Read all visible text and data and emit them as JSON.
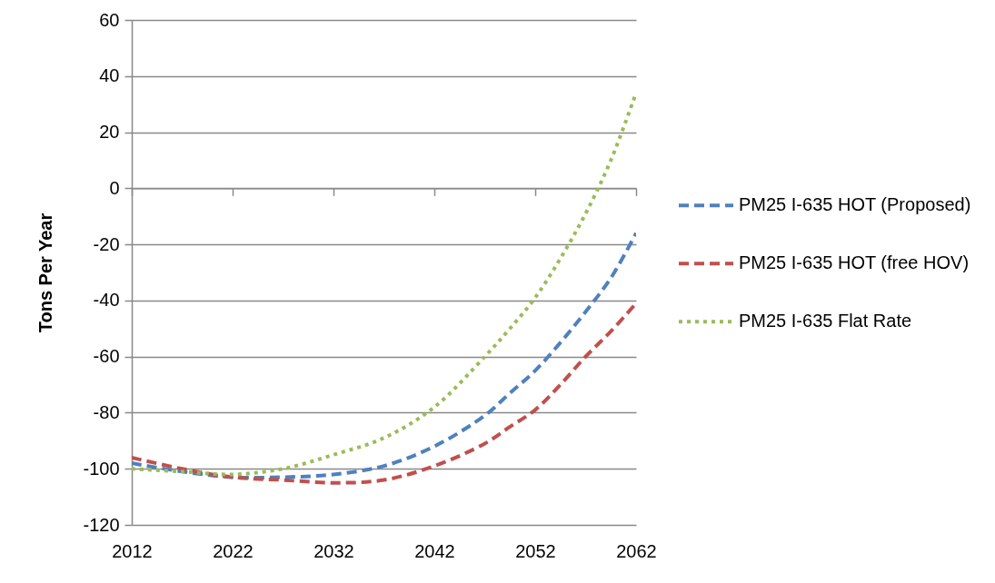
{
  "chart_data": {
    "type": "line",
    "ylabel": "Tons Per Year",
    "x": [
      2012,
      2017,
      2022,
      2027,
      2032,
      2037,
      2042,
      2047,
      2049.5,
      2052,
      2054.5,
      2057,
      2059.5,
      2062
    ],
    "xlim": [
      2012,
      2062
    ],
    "xticks": [
      2012,
      2022,
      2032,
      2042,
      2052,
      2062
    ],
    "ylim": [
      -120,
      60
    ],
    "yticks": [
      -120,
      -100,
      -80,
      -60,
      -40,
      -20,
      0,
      20,
      40,
      60
    ],
    "grid": "y",
    "legend": "right",
    "series": [
      {
        "name": "PM25 I-635 HOT (Proposed)",
        "color": "#4f81bd",
        "line_style": "dashed",
        "values": [
          -98,
          -101,
          -103,
          -103,
          -102,
          -99,
          -92,
          -81,
          -73,
          -65,
          -55,
          -44,
          -32,
          -16
        ]
      },
      {
        "name": "PM25 I-635 HOT (free HOV)",
        "color": "#c0504d",
        "line_style": "dashed",
        "values": [
          -96,
          -100,
          -103,
          -104,
          -105,
          -104,
          -99,
          -91,
          -85,
          -79,
          -70,
          -60,
          -51,
          -41
        ]
      },
      {
        "name": "PM25 I-635 Flat Rate",
        "color": "#9bbb59",
        "line_style": "dotted",
        "values": [
          -100,
          -101,
          -102,
          -100,
          -95,
          -89,
          -78,
          -60,
          -50,
          -39,
          -25,
          -9,
          10,
          34
        ]
      }
    ]
  }
}
